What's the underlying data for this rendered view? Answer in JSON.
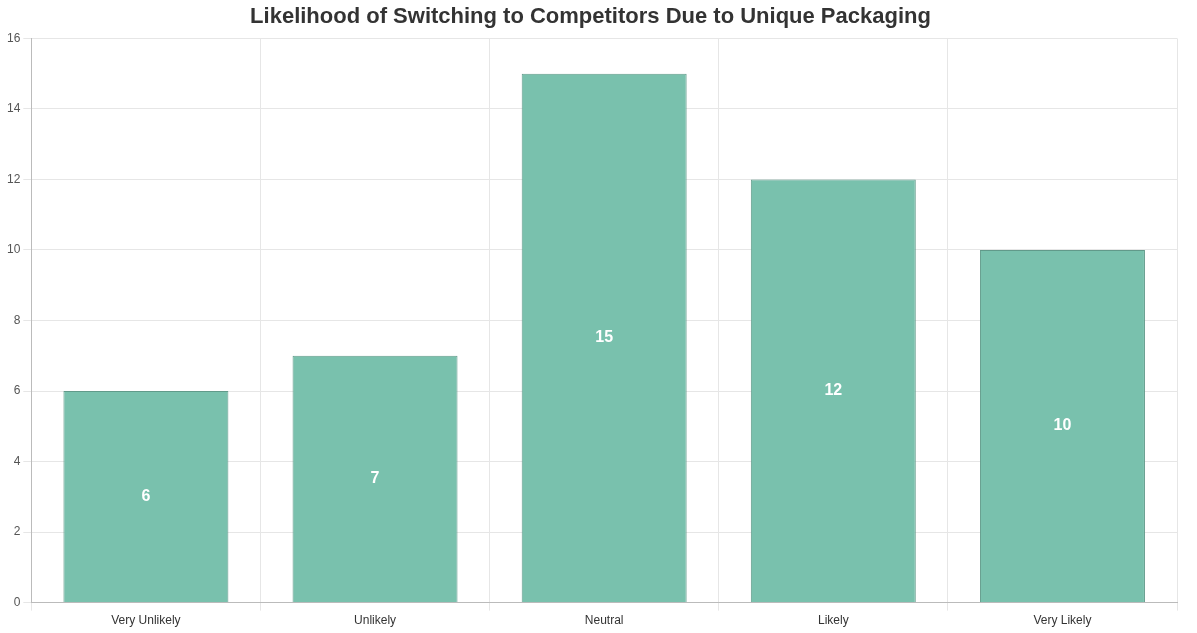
{
  "chart_data": {
    "type": "bar",
    "title": "Likelihood of Switching to Competitors Due to Unique Packaging",
    "categories": [
      "Very Unlikely",
      "Unlikely",
      "Neutral",
      "Likely",
      "Very Likely"
    ],
    "values": [
      6,
      7,
      15,
      12,
      10
    ],
    "color": "#79c1ad",
    "ylim": [
      0,
      16
    ],
    "yticks": [
      0,
      2,
      4,
      6,
      8,
      10,
      12,
      14,
      16
    ],
    "grid": true,
    "data_labels": true,
    "legend": false
  }
}
